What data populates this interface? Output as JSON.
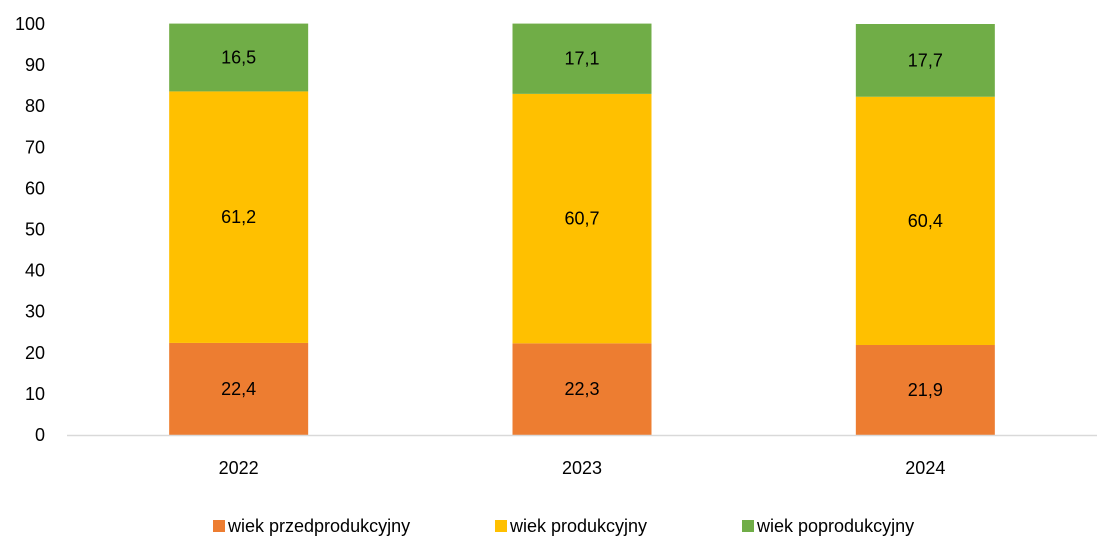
{
  "chart_data": {
    "type": "bar",
    "stacked": true,
    "categories": [
      "2022",
      "2023",
      "2024"
    ],
    "series": [
      {
        "name": "wiek przedprodukcyjny",
        "values": [
          22.4,
          22.3,
          21.9
        ],
        "labels": [
          "22,4",
          "22,3",
          "21,9"
        ],
        "color": "#ED7D31"
      },
      {
        "name": "wiek produkcyjny",
        "values": [
          61.2,
          60.7,
          60.4
        ],
        "labels": [
          "61,2",
          "60,7",
          "60,4"
        ],
        "color": "#FFC000"
      },
      {
        "name": "wiek poprodukcyjny",
        "values": [
          16.5,
          17.1,
          17.7
        ],
        "labels": [
          "16,5",
          "17,1",
          "17,7"
        ],
        "color": "#70AD47"
      }
    ],
    "y_ticks": [
      "0",
      "10",
      "20",
      "30",
      "40",
      "50",
      "60",
      "70",
      "80",
      "90",
      "100"
    ],
    "ylim": [
      0,
      100
    ],
    "grid": false,
    "legend": "bottom",
    "axis_color": "#D9D9D9"
  }
}
